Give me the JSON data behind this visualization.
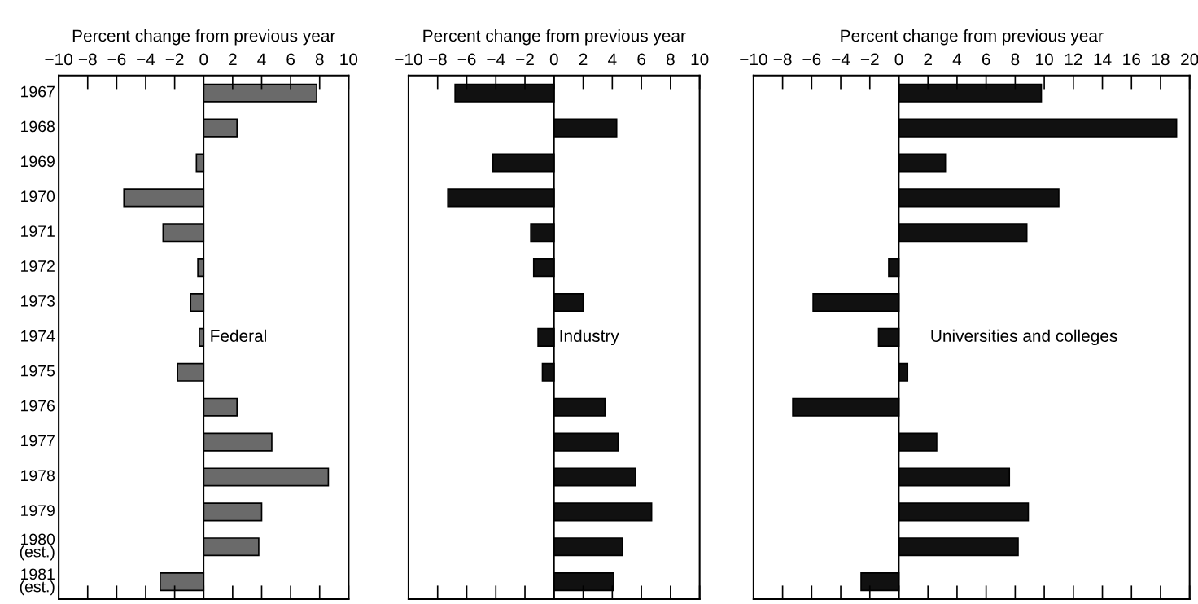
{
  "chart_data": [
    {
      "type": "bar",
      "orientation": "horizontal",
      "xlabel": "Percent change from previous year",
      "annotations": [
        "Federal"
      ],
      "categories": [
        "1967",
        "1968",
        "1969",
        "1970",
        "1971",
        "1972",
        "1973",
        "1974",
        "1975",
        "1976",
        "1977",
        "1978",
        "1979",
        "1980\n(est.)",
        "1981\n(est.)"
      ],
      "values": [
        7.8,
        2.3,
        -0.5,
        -5.5,
        -2.8,
        -0.4,
        -0.9,
        -0.3,
        -1.8,
        2.3,
        4.7,
        8.6,
        4.0,
        3.8,
        -3.0
      ],
      "color": "#6a6a6a",
      "xlim": [
        -10,
        10
      ],
      "xticks": [
        -10,
        -8,
        -6,
        -4,
        -2,
        0,
        2,
        4,
        6,
        8,
        10
      ],
      "ref_lines": [
        {
          "axis": "x",
          "value": 0,
          "label": null
        }
      ]
    },
    {
      "type": "bar",
      "orientation": "horizontal",
      "xlabel": "Percent change from previous year",
      "annotations": [
        "Industry"
      ],
      "categories": [
        null,
        null,
        null,
        null,
        null,
        null,
        null,
        null,
        null,
        null,
        null,
        null,
        null,
        null,
        null
      ],
      "values": [
        -6.8,
        4.3,
        -4.2,
        -7.3,
        -1.6,
        -1.4,
        2.0,
        -1.1,
        -0.8,
        3.5,
        4.4,
        5.6,
        6.7,
        4.7,
        4.1
      ],
      "color": "#111111",
      "xlim": [
        -10,
        10
      ],
      "xticks": [
        -10,
        -8,
        -6,
        -4,
        -2,
        0,
        2,
        4,
        6,
        8,
        10
      ],
      "tick_labels": "x",
      "ref_lines": [
        {
          "axis": "x",
          "value": 0,
          "label": null
        }
      ]
    },
    {
      "type": "bar",
      "orientation": "horizontal",
      "xlabel": "Percent change from previous year",
      "annotations": [
        "Universities and colleges"
      ],
      "categories": [
        null,
        null,
        null,
        null,
        null,
        null,
        null,
        null,
        null,
        null,
        null,
        null,
        null,
        null,
        null
      ],
      "values": [
        9.8,
        19.1,
        3.2,
        11.0,
        8.8,
        -0.7,
        -5.9,
        -1.4,
        0.6,
        -7.3,
        2.6,
        7.6,
        8.9,
        8.2,
        -2.6
      ],
      "color": "#111111",
      "xlim": [
        -10,
        20
      ],
      "xticks": [
        -10,
        -8,
        -6,
        -4,
        -2,
        0,
        2,
        4,
        6,
        8,
        10,
        12,
        14,
        16,
        18,
        20
      ],
      "tick_labels": "x",
      "ref_lines": [
        {
          "axis": "x",
          "value": 0,
          "label": null
        }
      ]
    }
  ]
}
